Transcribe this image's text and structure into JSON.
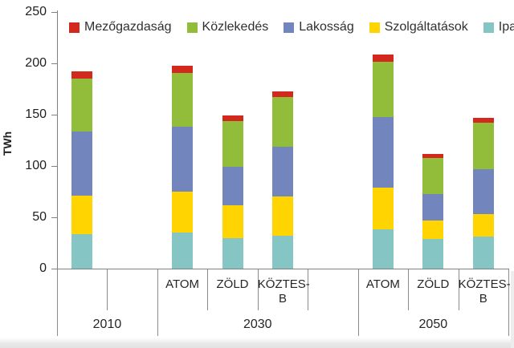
{
  "chart_data": {
    "type": "bar",
    "stacked": true,
    "ylabel": "TWh",
    "ylim": [
      0,
      250
    ],
    "yticks": [
      250,
      200,
      150,
      100,
      50,
      0
    ],
    "grid": false,
    "legend_position": "top",
    "legend_order": [
      "Mezőgazdaság",
      "Közlekedés",
      "Lakosság",
      "Szolgáltatások",
      "Ipar"
    ],
    "slots": [
      "",
      "",
      "ATOM",
      "ZÖLD",
      "KÖZTES-B",
      "",
      "ATOM",
      "ZÖLD",
      "KÖZTES-B"
    ],
    "groups": [
      {
        "label": "2010",
        "from": 0,
        "to": 1
      },
      {
        "label": "2030",
        "from": 2,
        "to": 5
      },
      {
        "label": "2050",
        "from": 6,
        "to": 8
      }
    ],
    "series": [
      {
        "name": "Ipar",
        "color": "#85c6c4",
        "values": [
          34,
          null,
          35,
          30,
          32,
          null,
          38,
          29,
          31
        ]
      },
      {
        "name": "Szolgáltatások",
        "color": "#ffd400",
        "values": [
          37,
          null,
          40,
          32,
          38,
          null,
          41,
          18,
          22
        ]
      },
      {
        "name": "Lakosság",
        "color": "#7286bd",
        "values": [
          63,
          null,
          63,
          37,
          49,
          null,
          69,
          26,
          44
        ]
      },
      {
        "name": "Közlekedés",
        "color": "#92bd3b",
        "values": [
          51,
          null,
          53,
          45,
          48,
          null,
          54,
          35,
          45
        ]
      },
      {
        "name": "Mezőgazdaság",
        "color": "#d3281e",
        "values": [
          7,
          null,
          7,
          5,
          6,
          null,
          7,
          4,
          5
        ]
      }
    ]
  },
  "colors": {
    "axis": "#808080",
    "divider": "#8c8c8c",
    "tick_text": "#1f1f1f",
    "label_text": "#262626"
  }
}
